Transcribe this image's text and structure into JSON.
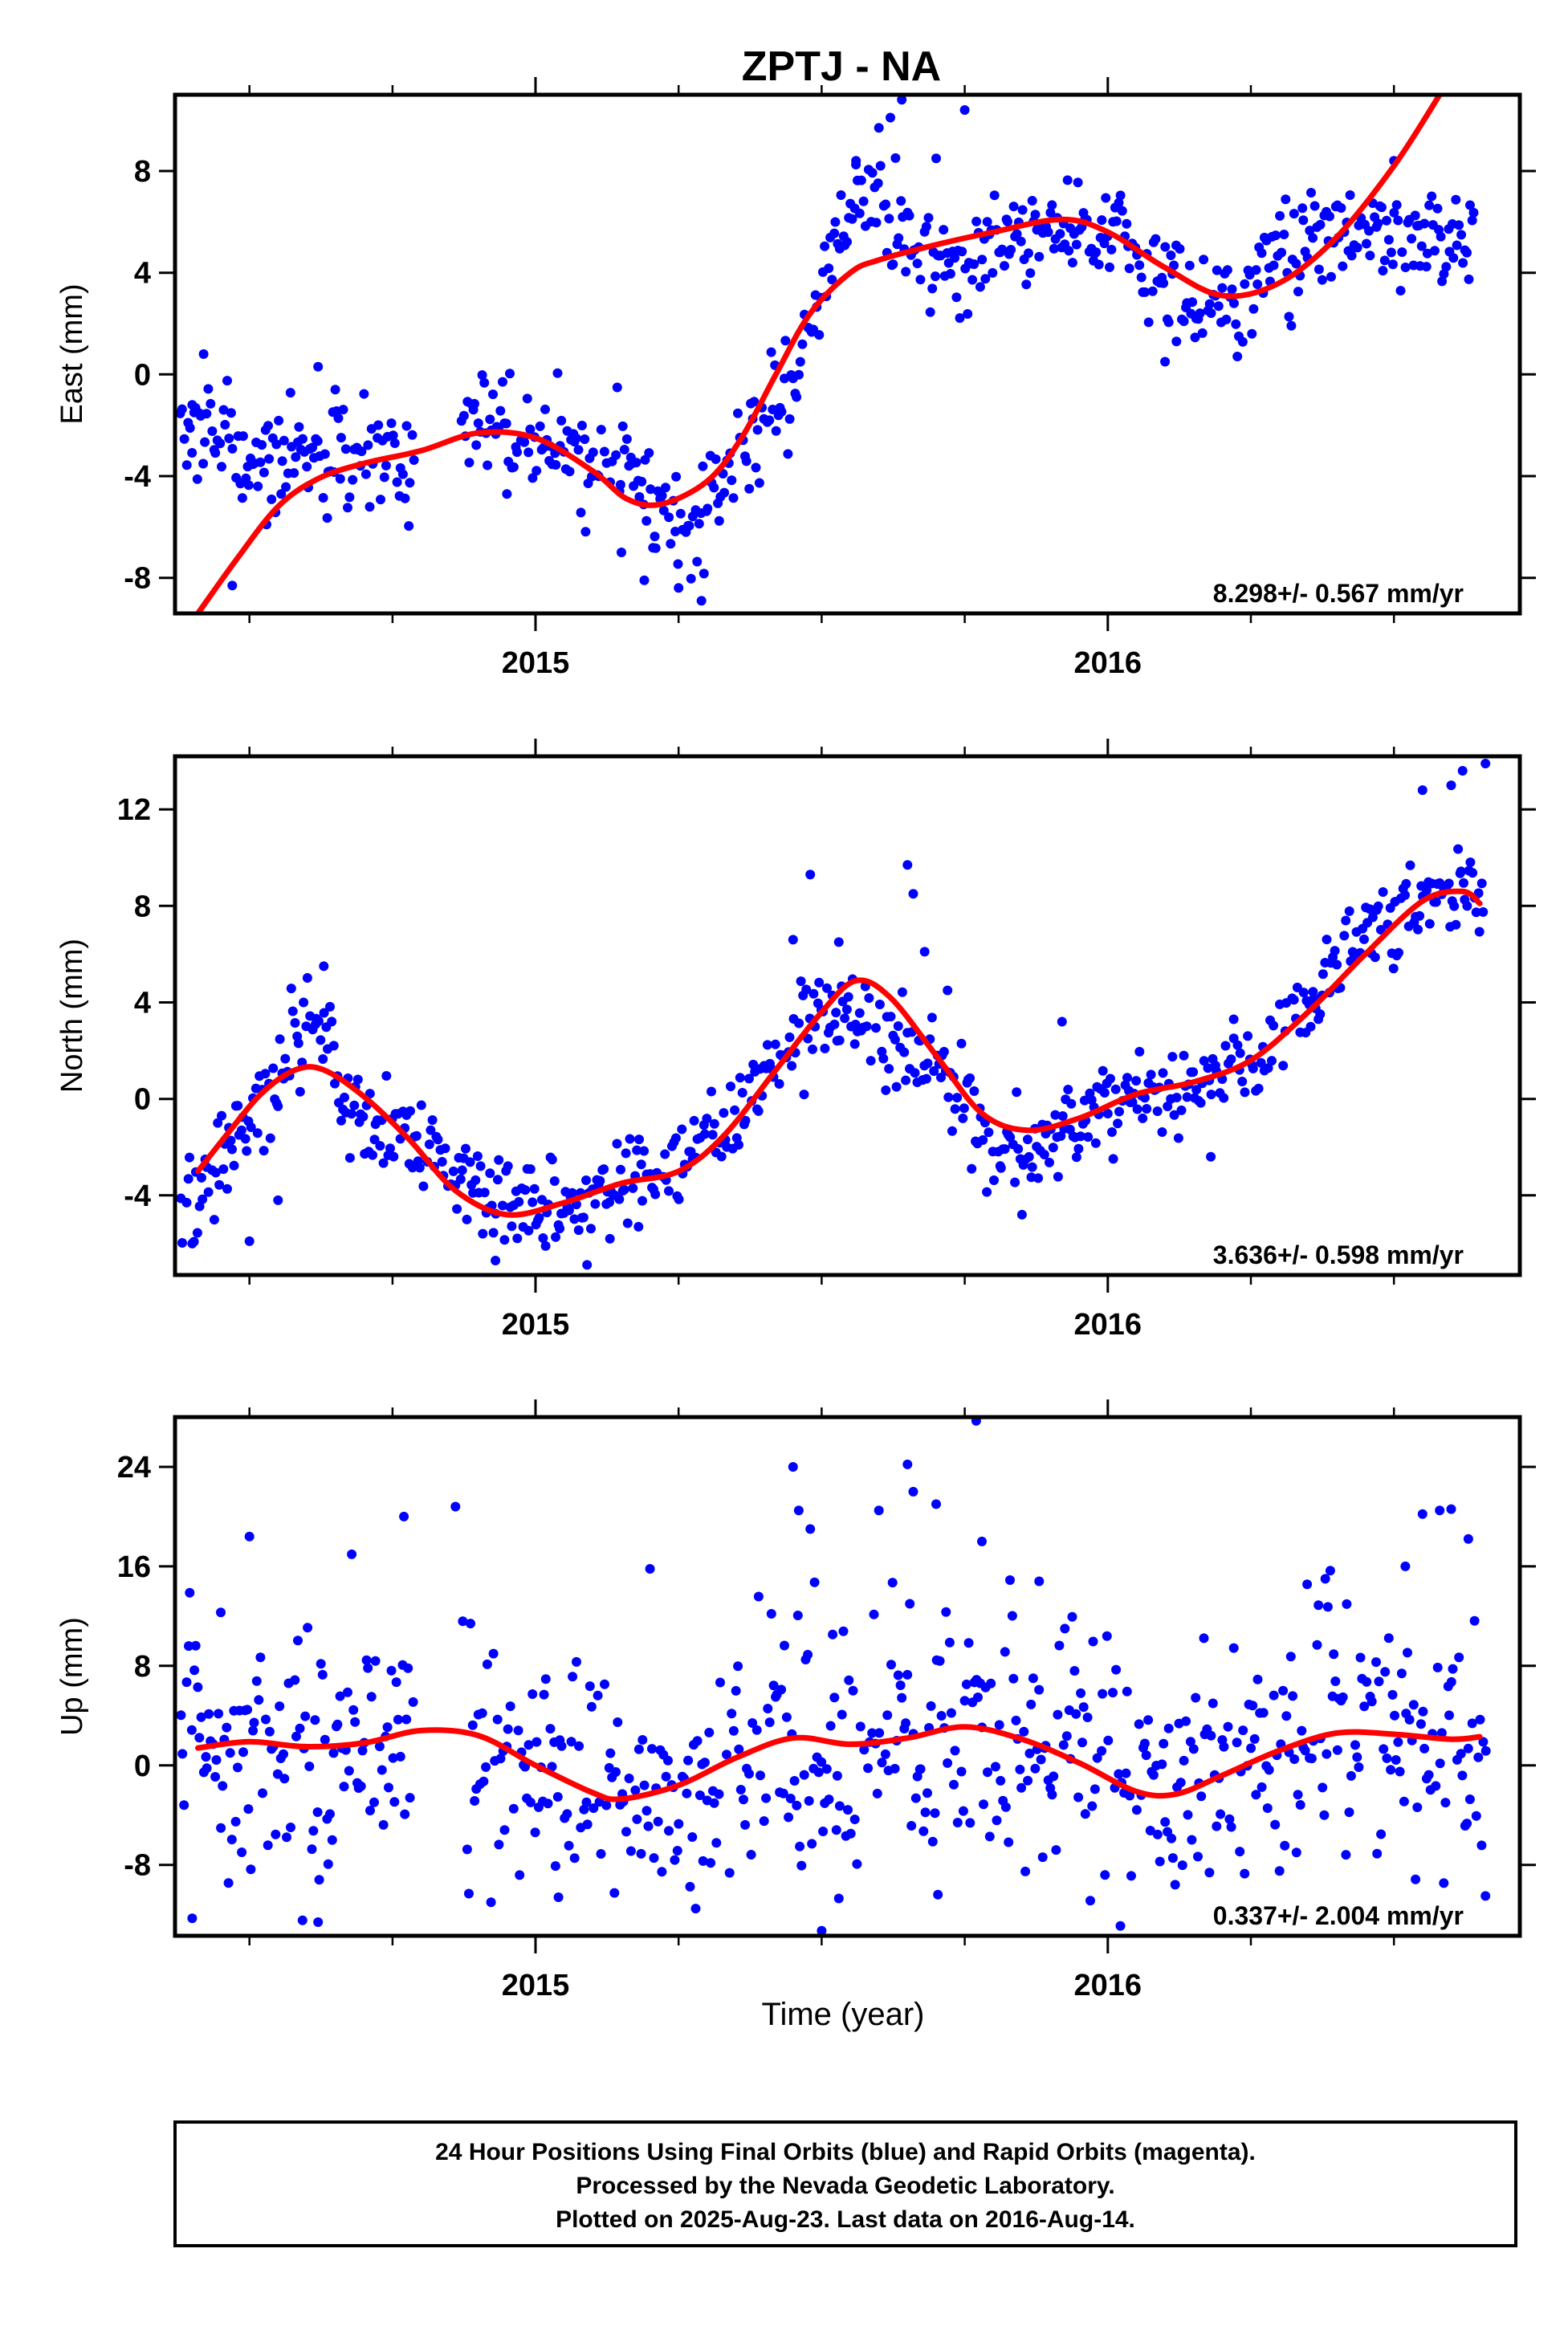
{
  "title": "ZPTJ - NA",
  "colors": {
    "points": "#0000ff",
    "fit": "#ff0000",
    "frame": "#000000"
  },
  "footer": {
    "line1": "24 Hour Positions Using Final Orbits (blue) and Rapid Orbits (magenta).",
    "line2": "Processed by the Nevada Geodetic Laboratory.",
    "line3": "Plotted on 2025-Aug-23. Last data on 2016-Aug-14."
  },
  "chart_data": [
    {
      "type": "scatter",
      "ylabel": "East (mm)",
      "xlabel": "",
      "rate_text": "8.298+/- 0.567 mm/yr",
      "xlim": [
        2014.37,
        2016.72
      ],
      "ylim": [
        -9.4,
        11.0
      ],
      "xticks_major": [
        2015,
        2016
      ],
      "xtick_labels": [
        "2015",
        "2016"
      ],
      "yticks": [
        -8,
        -4,
        0,
        4,
        8
      ],
      "ytick_labels": [
        "-8",
        "-4",
        "0",
        "4",
        "8"
      ],
      "fit": {
        "x": [
          2014.41,
          2014.48,
          2014.55,
          2014.62,
          2014.7,
          2014.8,
          2014.9,
          2015.0,
          2015.1,
          2015.16,
          2015.22,
          2015.3,
          2015.36,
          2015.42,
          2015.48,
          2015.55,
          2015.6,
          2015.7,
          2015.8,
          2015.92,
          2016.0,
          2016.1,
          2016.2,
          2016.3,
          2016.4,
          2016.5,
          2016.58
        ],
        "y": [
          -9.4,
          -7.2,
          -5.2,
          -4.1,
          -3.5,
          -3.0,
          -2.3,
          -2.5,
          -3.8,
          -4.9,
          -5.1,
          -4.2,
          -2.5,
          0.0,
          2.4,
          4.0,
          4.5,
          5.1,
          5.6,
          6.1,
          5.6,
          4.2,
          3.1,
          3.6,
          5.4,
          8.2,
          11.0
        ]
      },
      "anchors": {
        "x": [
          2014.38,
          2014.45,
          2014.5,
          2014.6,
          2014.7,
          2014.8,
          2014.85,
          2014.9,
          2015.0,
          2015.1,
          2015.15,
          2015.22,
          2015.28,
          2015.32,
          2015.38,
          2015.45,
          2015.5,
          2015.52,
          2015.58,
          2015.62,
          2015.67,
          2015.72,
          2015.8,
          2015.92,
          2016.0,
          2016.05,
          2016.12,
          2016.22,
          2016.3,
          2016.38,
          2016.45,
          2016.55,
          2016.64
        ],
        "y": [
          -2.0,
          -2.6,
          -3.6,
          -3.0,
          -2.6,
          -3.4,
          -3.0,
          -2.2,
          -2.6,
          -3.6,
          -3.8,
          -5.3,
          -6.6,
          -4.0,
          -2.2,
          -0.5,
          3.0,
          5.5,
          7.0,
          6.0,
          4.3,
          4.0,
          4.9,
          5.9,
          5.4,
          4.9,
          3.3,
          2.8,
          4.6,
          5.7,
          5.6,
          5.3,
          5.7
        ]
      },
      "gaps": [
        [
          2014.79,
          2014.87
        ]
      ],
      "scatter_std": 1.05,
      "point_count": 700,
      "outliers": {
        "x": [
          2014.4,
          2014.42,
          2014.47,
          2014.53,
          2014.62,
          2014.65,
          2014.95,
          2015.15,
          2015.19,
          2015.25,
          2015.29,
          2015.56,
          2015.6,
          2015.62,
          2015.64,
          2015.7,
          2015.75,
          2016.1,
          2016.12,
          2016.5
        ],
        "y": [
          -1.2,
          0.8,
          -8.3,
          -5.9,
          0.3,
          -0.6,
          -4.7,
          -7.0,
          -8.1,
          -8.4,
          -8.9,
          8.4,
          9.7,
          10.1,
          10.8,
          8.5,
          10.4,
          0.5,
          1.3,
          8.4
        ]
      }
    },
    {
      "type": "scatter",
      "ylabel": "North (mm)",
      "xlabel": "",
      "rate_text": "3.636+/- 0.598 mm/yr",
      "xlim": [
        2014.37,
        2016.72
      ],
      "ylim": [
        -7.3,
        14.2
      ],
      "xticks_major": [
        2015,
        2016
      ],
      "xtick_labels": [
        "2015",
        "2016"
      ],
      "yticks": [
        -4,
        0,
        4,
        8,
        12
      ],
      "ytick_labels": [
        "-4",
        "0",
        "4",
        "8",
        "12"
      ],
      "fit": {
        "x": [
          2014.41,
          2014.46,
          2014.52,
          2014.58,
          2014.63,
          2014.7,
          2014.78,
          2014.86,
          2014.95,
          2015.05,
          2015.15,
          2015.25,
          2015.33,
          2015.42,
          2015.5,
          2015.56,
          2015.62,
          2015.7,
          2015.78,
          2015.86,
          2015.95,
          2016.05,
          2016.15,
          2016.25,
          2016.35,
          2016.45,
          2016.55,
          2016.62,
          2016.65
        ],
        "y": [
          -3.0,
          -1.5,
          0.2,
          1.2,
          1.2,
          0.1,
          -1.7,
          -3.8,
          -4.8,
          -4.3,
          -3.5,
          -3.0,
          -1.5,
          1.2,
          3.6,
          4.9,
          4.2,
          1.8,
          -0.6,
          -1.3,
          -0.8,
          0.2,
          0.7,
          1.6,
          3.6,
          6.0,
          8.2,
          8.6,
          8.1
        ]
      },
      "anchors": {
        "x": [
          2014.38,
          2014.45,
          2014.52,
          2014.58,
          2014.62,
          2014.66,
          2014.72,
          2014.8,
          2014.86,
          2014.95,
          2015.05,
          2015.15,
          2015.25,
          2015.33,
          2015.42,
          2015.5,
          2015.56,
          2015.62,
          2015.7,
          2015.78,
          2015.86,
          2015.95,
          2016.05,
          2016.15,
          2016.25,
          2016.35,
          2016.45,
          2016.55,
          2016.62,
          2016.66
        ],
        "y": [
          -4.8,
          -2.5,
          -0.2,
          2.8,
          4.0,
          0.0,
          -1.0,
          -2.0,
          -2.8,
          -4.4,
          -4.4,
          -3.4,
          -2.6,
          -1.2,
          1.6,
          3.6,
          3.4,
          2.6,
          1.6,
          -1.6,
          -2.2,
          -0.9,
          0.4,
          0.3,
          1.6,
          4.0,
          6.8,
          8.4,
          9.4,
          8.3
        ]
      },
      "gaps": [],
      "scatter_std": 0.95,
      "point_count": 710,
      "outliers": {
        "x": [
          2014.4,
          2014.5,
          2014.55,
          2014.63,
          2014.88,
          2014.93,
          2015.13,
          2015.18,
          2015.45,
          2015.48,
          2015.53,
          2015.65,
          2015.66,
          2015.68,
          2015.72,
          2015.85,
          2015.92,
          2016.18,
          2016.22,
          2016.55,
          2016.6,
          2016.62,
          2016.66
        ],
        "y": [
          -6.0,
          -5.9,
          -4.2,
          5.5,
          -5.0,
          -6.7,
          -5.8,
          -5.3,
          6.6,
          9.3,
          6.5,
          9.7,
          8.5,
          6.1,
          4.5,
          -4.8,
          3.2,
          -2.4,
          3.3,
          12.8,
          13.0,
          13.6,
          13.9
        ]
      }
    },
    {
      "type": "scatter",
      "ylabel": "Up (mm)",
      "xlabel": "Time (year)",
      "rate_text": "0.337+/- 2.004 mm/yr",
      "xlim": [
        2014.37,
        2016.72
      ],
      "ylim": [
        -13.7,
        28.0
      ],
      "xticks_major": [
        2015,
        2016
      ],
      "xtick_labels": [
        "2015",
        "2016"
      ],
      "yticks": [
        -8,
        0,
        8,
        16,
        24
      ],
      "ytick_labels": [
        "-8",
        "0",
        "8",
        "16",
        "24"
      ],
      "fit": {
        "x": [
          2014.41,
          2014.5,
          2014.6,
          2014.7,
          2014.8,
          2014.9,
          2015.0,
          2015.1,
          2015.15,
          2015.25,
          2015.35,
          2015.45,
          2015.55,
          2015.65,
          2015.75,
          2015.85,
          2015.95,
          2016.05,
          2016.12,
          2016.2,
          2016.3,
          2016.4,
          2016.5,
          2016.6,
          2016.65
        ],
        "y": [
          1.4,
          1.9,
          1.5,
          1.8,
          2.8,
          2.4,
          0.0,
          -2.2,
          -2.7,
          -1.6,
          0.6,
          2.2,
          1.7,
          2.2,
          3.1,
          2.1,
          0.2,
          -2.1,
          -2.3,
          -0.8,
          1.2,
          2.6,
          2.5,
          2.1,
          2.3
        ]
      },
      "anchors": {
        "x": [
          2014.38,
          2014.5,
          2014.6,
          2014.7,
          2014.8,
          2014.88,
          2014.95,
          2015.05,
          2015.15,
          2015.25,
          2015.35,
          2015.45,
          2015.55,
          2015.65,
          2015.75,
          2015.85,
          2015.95,
          2016.05,
          2016.12,
          2016.2,
          2016.3,
          2016.4,
          2016.5,
          2016.6,
          2016.66
        ],
        "y": [
          1.8,
          1.5,
          1.2,
          1.5,
          2.0,
          1.8,
          0.0,
          -2.2,
          -2.6,
          -1.5,
          0.8,
          2.2,
          1.5,
          2.0,
          2.8,
          2.0,
          0.2,
          -2.0,
          -2.3,
          -0.7,
          1.2,
          2.3,
          2.5,
          2.2,
          2.4
        ]
      },
      "gaps": [
        [
          2014.79,
          2014.87
        ]
      ],
      "scatter_std": 5.2,
      "point_count": 690,
      "outliers": {
        "x": [
          2014.4,
          2014.45,
          2014.5,
          2014.62,
          2014.77,
          2014.86,
          2015.04,
          2015.2,
          2015.45,
          2015.46,
          2015.48,
          2015.5,
          2015.53,
          2015.6,
          2015.65,
          2015.66,
          2015.7,
          2015.77,
          2015.78,
          2015.88,
          2016.38,
          2016.52,
          2016.55,
          2016.58,
          2016.6,
          2016.63,
          2016.66
        ],
        "y": [
          -12.3,
          12.3,
          18.4,
          -12.6,
          20.0,
          20.8,
          -10.6,
          15.8,
          24.0,
          20.5,
          19.0,
          -13.3,
          -10.7,
          20.5,
          24.2,
          22.0,
          21.0,
          27.7,
          18.0,
          14.8,
          15.0,
          16.0,
          20.2,
          20.5,
          20.6,
          18.2,
          -10.5
        ]
      }
    }
  ]
}
